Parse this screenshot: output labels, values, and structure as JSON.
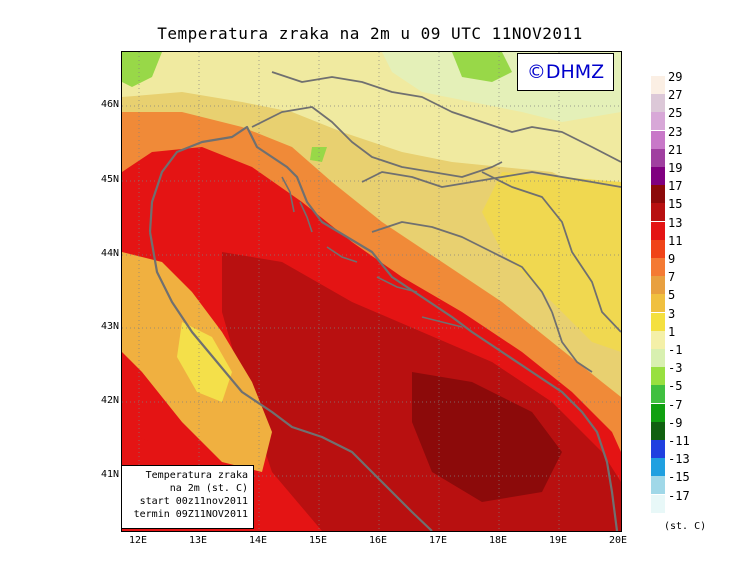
{
  "title": "Temperatura zraka na 2m u 09 UTC 11NOV2011",
  "brand": "©DHMZ",
  "info_box": {
    "line1": "Temperatura zraka",
    "line2": "na 2m (st. C)",
    "line3": "start 00z11nov2011",
    "line4": "termin 09Z11NOV2011"
  },
  "lat_labels": [
    "46N",
    "45N",
    "44N",
    "43N",
    "42N",
    "41N"
  ],
  "lon_labels": [
    "12E",
    "13E",
    "14E",
    "15E",
    "16E",
    "17E",
    "18E",
    "19E",
    "20E"
  ],
  "legend": {
    "unit": "(st. C)",
    "labels": [
      "29",
      "27",
      "25",
      "23",
      "21",
      "19",
      "17",
      "15",
      "13",
      "11",
      "9",
      "7",
      "5",
      "3",
      "1",
      "-1",
      "-3",
      "-5",
      "-7",
      "-9",
      "-11",
      "-13",
      "-15",
      "-17"
    ],
    "colors": [
      "#fbefe4",
      "#dcc8d8",
      "#d8a8d8",
      "#c878c8",
      "#a040a0",
      "#800080",
      "#8c0a0a",
      "#b81010",
      "#e41414",
      "#f04418",
      "#f47a34",
      "#e8a040",
      "#f0c040",
      "#f4e040",
      "#f4f0a8",
      "#d8f0b0",
      "#98e040",
      "#40c040",
      "#10a010",
      "#106010",
      "#2040e0",
      "#20a0e0",
      "#a0d8e8",
      "#e8f8f8"
    ]
  }
}
